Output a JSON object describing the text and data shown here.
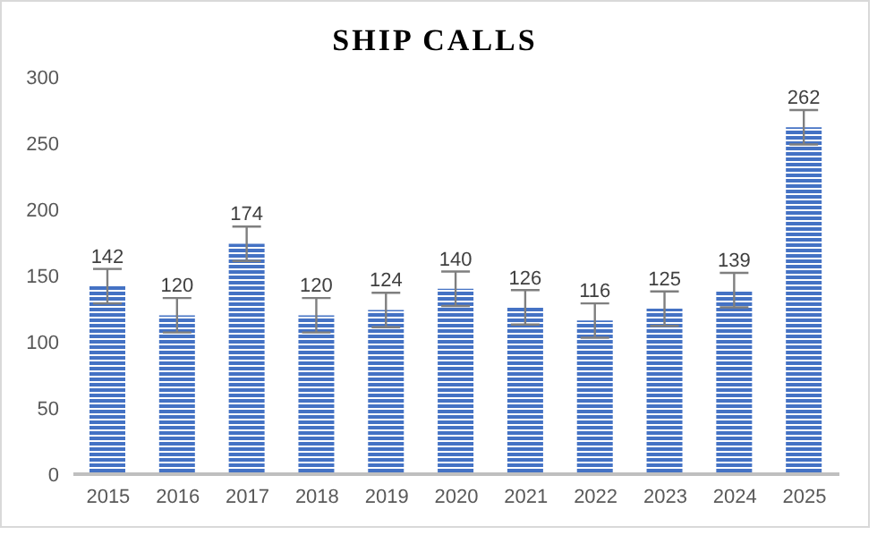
{
  "chart_data": {
    "type": "bar",
    "title": "SHIP CALLS",
    "categories": [
      "2015",
      "2016",
      "2017",
      "2018",
      "2019",
      "2020",
      "2021",
      "2022",
      "2023",
      "2024",
      "2025"
    ],
    "values": [
      142,
      120,
      174,
      120,
      124,
      140,
      126,
      116,
      125,
      139,
      262
    ],
    "errors": [
      13,
      13,
      13,
      13,
      13,
      13,
      13,
      13,
      13,
      13,
      13
    ],
    "color": "#4472c4",
    "ylim": [
      0,
      300
    ],
    "yticks": [
      0,
      50,
      100,
      150,
      200,
      250,
      300
    ],
    "grid": false,
    "data_labels": true,
    "legend": false
  }
}
